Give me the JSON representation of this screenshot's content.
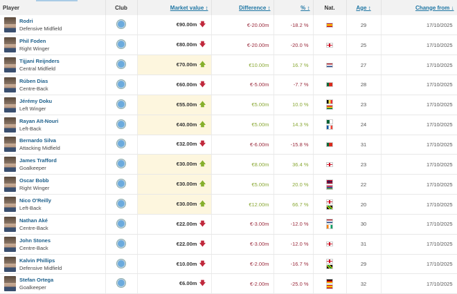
{
  "headers": {
    "player": "Player",
    "club": "Club",
    "market_value": "Market value ↕",
    "difference": "Difference ↕",
    "percent": "% ↕",
    "nat": "Nat.",
    "age": "Age ↕",
    "change_from": "Change from ↓"
  },
  "colors": {
    "negative": "#9a2a3c",
    "positive": "#8aa835",
    "highlight": "#fdf6de",
    "link": "#1d75a3"
  },
  "club_icon": "manchester-city-crest",
  "rows": [
    {
      "name": "Rodri",
      "position": "Defensive Midfield",
      "value": "€90.00m",
      "trend": "down",
      "diff": "€-20.00m",
      "pct": "-18.2 %",
      "nat": [
        "spain"
      ],
      "age": "29",
      "date": "17/10/2025"
    },
    {
      "name": "Phil Foden",
      "position": "Right Winger",
      "value": "€80.00m",
      "trend": "down",
      "diff": "€-20.00m",
      "pct": "-20.0 %",
      "nat": [
        "england"
      ],
      "age": "25",
      "date": "17/10/2025"
    },
    {
      "name": "Tijjani Reijnders",
      "position": "Central Midfield",
      "value": "€70.00m",
      "trend": "up",
      "diff": "€10.00m",
      "pct": "16.7 %",
      "nat": [
        "netherlands"
      ],
      "age": "27",
      "date": "17/10/2025"
    },
    {
      "name": "Rúben Dias",
      "position": "Centre-Back",
      "value": "€60.00m",
      "trend": "down",
      "diff": "€-5.00m",
      "pct": "-7.7 %",
      "nat": [
        "portugal"
      ],
      "age": "28",
      "date": "17/10/2025"
    },
    {
      "name": "Jérémy Doku",
      "position": "Left Winger",
      "value": "€55.00m",
      "trend": "up",
      "diff": "€5.00m",
      "pct": "10.0 %",
      "nat": [
        "belgium",
        "ghana"
      ],
      "age": "23",
      "date": "17/10/2025"
    },
    {
      "name": "Rayan Aït-Nouri",
      "position": "Left-Back",
      "value": "€40.00m",
      "trend": "up",
      "diff": "€5.00m",
      "pct": "14.3 %",
      "nat": [
        "algeria",
        "france"
      ],
      "age": "24",
      "date": "17/10/2025"
    },
    {
      "name": "Bernardo Silva",
      "position": "Attacking Midfield",
      "value": "€32.00m",
      "trend": "down",
      "diff": "€-6.00m",
      "pct": "-15.8 %",
      "nat": [
        "portugal"
      ],
      "age": "31",
      "date": "17/10/2025"
    },
    {
      "name": "James Trafford",
      "position": "Goalkeeper",
      "value": "€30.00m",
      "trend": "up",
      "diff": "€8.00m",
      "pct": "36.4 %",
      "nat": [
        "england"
      ],
      "age": "23",
      "date": "17/10/2025"
    },
    {
      "name": "Oscar Bobb",
      "position": "Right Winger",
      "value": "€30.00m",
      "trend": "up",
      "diff": "€5.00m",
      "pct": "20.0 %",
      "nat": [
        "norway",
        "gambia"
      ],
      "age": "22",
      "date": "17/10/2025"
    },
    {
      "name": "Nico O'Reilly",
      "position": "Left-Back",
      "value": "€30.00m",
      "trend": "up",
      "diff": "€12.00m",
      "pct": "66.7 %",
      "nat": [
        "england",
        "jamaica"
      ],
      "age": "20",
      "date": "17/10/2025"
    },
    {
      "name": "Nathan Aké",
      "position": "Centre-Back",
      "value": "€22.00m",
      "trend": "down",
      "diff": "€-3.00m",
      "pct": "-12.0 %",
      "nat": [
        "netherlands",
        "cote-divoire"
      ],
      "age": "30",
      "date": "17/10/2025"
    },
    {
      "name": "John Stones",
      "position": "Centre-Back",
      "value": "€22.00m",
      "trend": "down",
      "diff": "€-3.00m",
      "pct": "-12.0 %",
      "nat": [
        "england"
      ],
      "age": "31",
      "date": "17/10/2025"
    },
    {
      "name": "Kalvin Phillips",
      "position": "Defensive Midfield",
      "value": "€10.00m",
      "trend": "down",
      "diff": "€-2.00m",
      "pct": "-16.7 %",
      "nat": [
        "england",
        "jamaica"
      ],
      "age": "29",
      "date": "17/10/2025"
    },
    {
      "name": "Stefan Ortega",
      "position": "Goalkeeper",
      "value": "€6.00m",
      "trend": "down",
      "diff": "€-2.00m",
      "pct": "-25.0 %",
      "nat": [
        "germany",
        "spain"
      ],
      "age": "32",
      "date": "17/10/2025"
    }
  ]
}
